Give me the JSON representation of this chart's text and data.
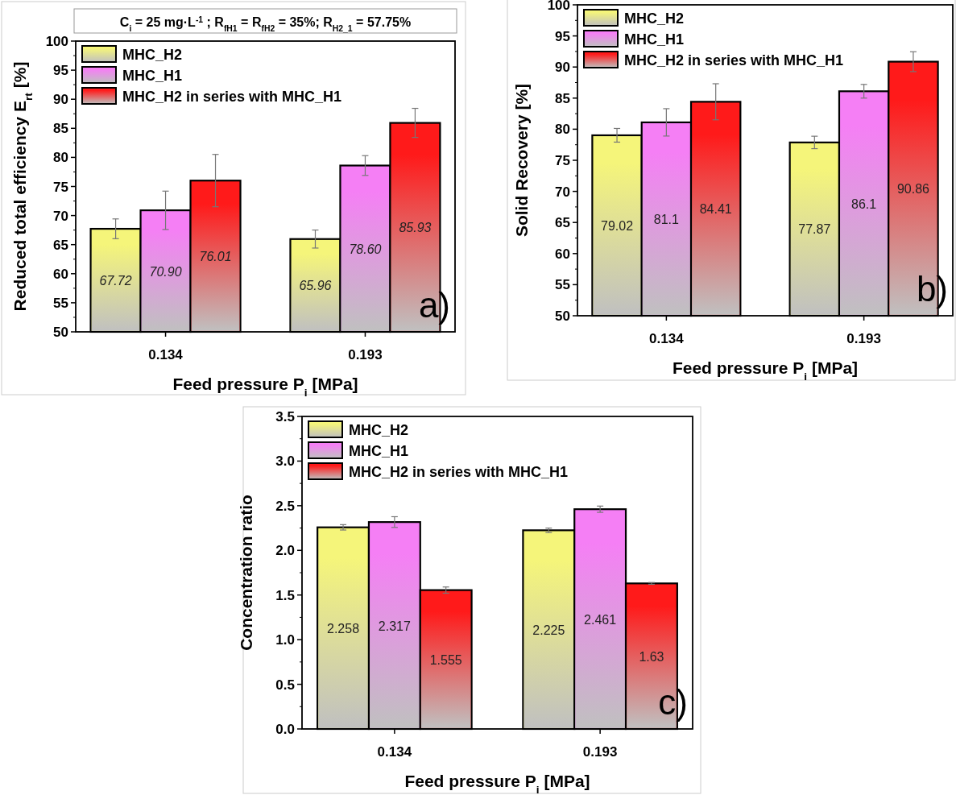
{
  "chart_data": [
    {
      "type": "bar",
      "ylabel": "Reduced total efficiency E$_{rt}$ [%]",
      "xlabel": "Feed pressure P$_{i}$ [MPa]",
      "categories": [
        "0.134",
        "0.193"
      ],
      "ylim": [
        50,
        100
      ],
      "yticks": [
        50,
        55,
        60,
        65,
        70,
        75,
        80,
        85,
        90,
        95,
        100
      ],
      "legend": "top left",
      "annotations": [
        "C$_{i}$ = 25 mg·L$^{-1}$; R$_{fH1}$ = R$_{fH2}$ = 35%; R$_{H2_1}$ = 57.75%",
        "a)"
      ],
      "series": [
        {
          "name": "MHC_H2",
          "color": "#f5f57a",
          "values": [
            67.72,
            65.96
          ],
          "errors": [
            1.7,
            1.55
          ],
          "value_labels": [
            "67.72",
            "65.96"
          ]
        },
        {
          "name": "MHC_H1",
          "color": "#f57ff5",
          "values": [
            70.9,
            78.6
          ],
          "errors": [
            3.3,
            1.7
          ],
          "value_labels": [
            "70.90",
            "78.60"
          ]
        },
        {
          "name": "MHC_H2 in series with MHC_H1",
          "color": "#ff1a1a",
          "values": [
            76.01,
            85.93
          ],
          "errors": [
            4.5,
            2.5
          ],
          "value_labels": [
            "76.01",
            "85.93"
          ]
        }
      ]
    },
    {
      "type": "bar",
      "ylabel": "Solid Recovery [%]",
      "xlabel": "Feed pressure P$_{i}$ [MPa]",
      "categories": [
        "0.134",
        "0.193"
      ],
      "ylim": [
        50,
        100
      ],
      "yticks": [
        50,
        55,
        60,
        65,
        70,
        75,
        80,
        85,
        90,
        95,
        100
      ],
      "legend": "top left",
      "data_labels": true,
      "annotations": [
        "b)"
      ],
      "series": [
        {
          "name": "MHC_H2",
          "color": "#f5f57a",
          "values": [
            79.02,
            77.87
          ],
          "errors": [
            1.1,
            1.0
          ]
        },
        {
          "name": "MHC_H1",
          "color": "#f57ff5",
          "values": [
            81.1,
            86.1
          ],
          "errors": [
            2.2,
            1.1
          ]
        },
        {
          "name": "MHC_H2 in series with MHC_H1",
          "color": "#ff1a1a",
          "values": [
            84.41,
            90.86
          ],
          "errors": [
            2.9,
            1.6
          ]
        }
      ]
    },
    {
      "type": "bar",
      "ylabel": "Concentration ratio",
      "xlabel": "Feed pressure P$_{i}$ [MPa]",
      "categories": [
        "0.134",
        "0.193"
      ],
      "ylim": [
        0,
        3.5
      ],
      "yticks": [
        {
          "value": 0,
          "label": "0.0"
        },
        0.5,
        {
          "value": 1,
          "label": "1.0"
        },
        1.5,
        {
          "value": 2,
          "label": "2.0"
        },
        2.5,
        {
          "value": 3,
          "label": "3.0"
        },
        3.5
      ],
      "legend": "top left",
      "data_labels": true,
      "annotations": [
        "c)"
      ],
      "series": [
        {
          "name": "MHC_H2",
          "color": "#f5f57a",
          "values": [
            2.258,
            2.225
          ],
          "errors": [
            0.03,
            0.025
          ]
        },
        {
          "name": "MHC_H1",
          "color": "#f57ff5",
          "values": [
            2.317,
            2.461
          ],
          "errors": [
            0.06,
            0.035
          ]
        },
        {
          "name": "MHC_H2 in series with MHC_H1",
          "color": "#ff1a1a",
          "values": [
            1.555,
            1.63
          ],
          "errors": [
            0.035,
            0.01
          ]
        }
      ]
    }
  ]
}
